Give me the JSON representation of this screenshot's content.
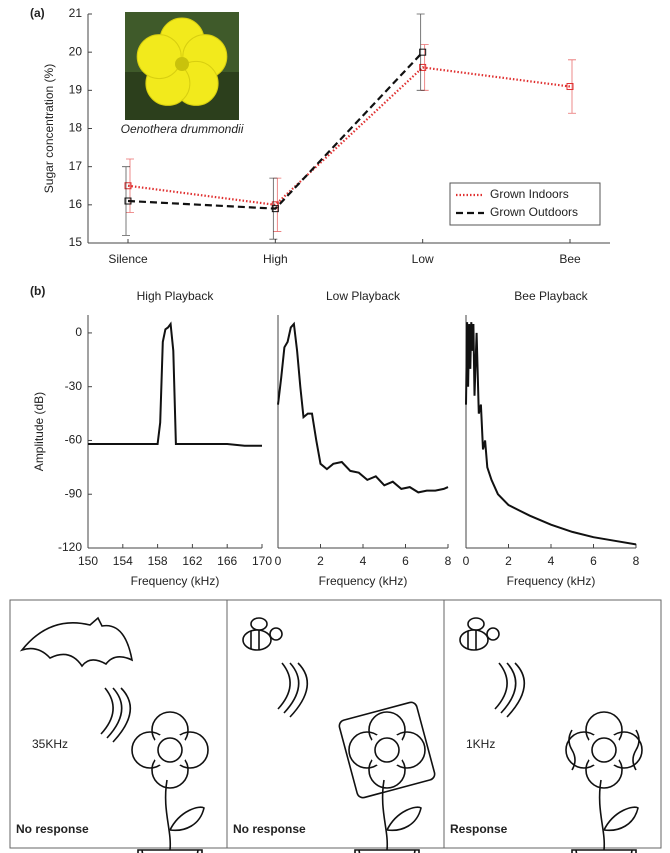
{
  "chart_data": [
    {
      "type": "line",
      "label": "(a)",
      "ylabel": "Sugar concentration (%)",
      "image_caption": "Oenothera drummondii",
      "categories": [
        "Silence",
        "High",
        "Low",
        "Bee"
      ],
      "ylim": [
        15,
        21
      ],
      "yticks": [
        15,
        16,
        17,
        18,
        19,
        20,
        21
      ],
      "legend": "lower right",
      "series": [
        {
          "name": "Grown Indoors",
          "color": "#e03030",
          "line_style": "dotted",
          "values": [
            16.5,
            16.0,
            19.6,
            19.1
          ],
          "errors": [
            0.7,
            0.7,
            0.6,
            0.7
          ]
        },
        {
          "name": "Grown Outdoors",
          "color": "#111111",
          "line_style": "dashed",
          "values": [
            16.1,
            15.9,
            20.0,
            null
          ],
          "errors": [
            0.9,
            0.8,
            1.0,
            null
          ]
        }
      ]
    },
    {
      "type": "line",
      "label": "(b)",
      "title": "High Playback",
      "xlabel": "Frequency (kHz)",
      "ylabel": "Amplitude (dB)",
      "xlim": [
        150,
        170
      ],
      "xticks": [
        150,
        154,
        158,
        162,
        166,
        170
      ],
      "ylim": [
        -120,
        10
      ],
      "yticks": [
        0,
        -30,
        -60,
        -90,
        -120
      ],
      "x": [
        150,
        152,
        154,
        156,
        158,
        158.3,
        158.6,
        158.9,
        159.2,
        159.5,
        159.8,
        160.1,
        162,
        164,
        166,
        168,
        170
      ],
      "series": [
        {
          "color": "#111111",
          "values": [
            -62,
            -62,
            -62,
            -62,
            -62,
            -50,
            -5,
            2,
            3,
            5,
            -10,
            -62,
            -62,
            -62,
            -62,
            -63,
            -63
          ]
        }
      ]
    },
    {
      "type": "line",
      "title": "Low Playback",
      "xlabel": "Frequency (kHz)",
      "xlim": [
        0,
        8
      ],
      "xticks": [
        0,
        2,
        4,
        6,
        8
      ],
      "ylim": [
        -120,
        10
      ],
      "x": [
        0,
        0.15,
        0.3,
        0.45,
        0.6,
        0.75,
        0.9,
        1.05,
        1.2,
        1.4,
        1.6,
        1.8,
        2.0,
        2.3,
        2.6,
        3.0,
        3.4,
        3.8,
        4.2,
        4.6,
        5.0,
        5.4,
        5.8,
        6.2,
        6.6,
        7.0,
        7.4,
        7.8,
        8.0
      ],
      "series": [
        {
          "color": "#111111",
          "values": [
            -40,
            -25,
            -8,
            -5,
            3,
            5,
            -10,
            -30,
            -47,
            -45,
            -45,
            -60,
            -73,
            -76,
            -73,
            -72,
            -77,
            -78,
            -82,
            -80,
            -85,
            -83,
            -87,
            -86,
            -89,
            -88,
            -88,
            -87,
            -86
          ]
        }
      ]
    },
    {
      "type": "line",
      "title": "Bee Playback",
      "xlabel": "Frequency (kHz)",
      "xlim": [
        0,
        8
      ],
      "xticks": [
        0,
        2,
        4,
        6,
        8
      ],
      "ylim": [
        -120,
        10
      ],
      "x": [
        0,
        0.05,
        0.1,
        0.15,
        0.2,
        0.25,
        0.3,
        0.35,
        0.4,
        0.5,
        0.6,
        0.7,
        0.8,
        0.9,
        1.0,
        1.2,
        1.5,
        2,
        2.5,
        3,
        4,
        5,
        6,
        7,
        8
      ],
      "series": [
        {
          "color": "#111111",
          "values": [
            -40,
            6,
            -30,
            5,
            -20,
            6,
            -10,
            5,
            -35,
            0,
            -45,
            -40,
            -65,
            -60,
            -75,
            -82,
            -90,
            -96,
            -99,
            -102,
            -107,
            -111,
            -114,
            -116,
            -118
          ]
        }
      ]
    }
  ],
  "illustrations": [
    {
      "frequency": "35KHz",
      "caption": "No response"
    },
    {
      "caption": "No response"
    },
    {
      "frequency": "1KHz",
      "caption": "Response"
    }
  ]
}
